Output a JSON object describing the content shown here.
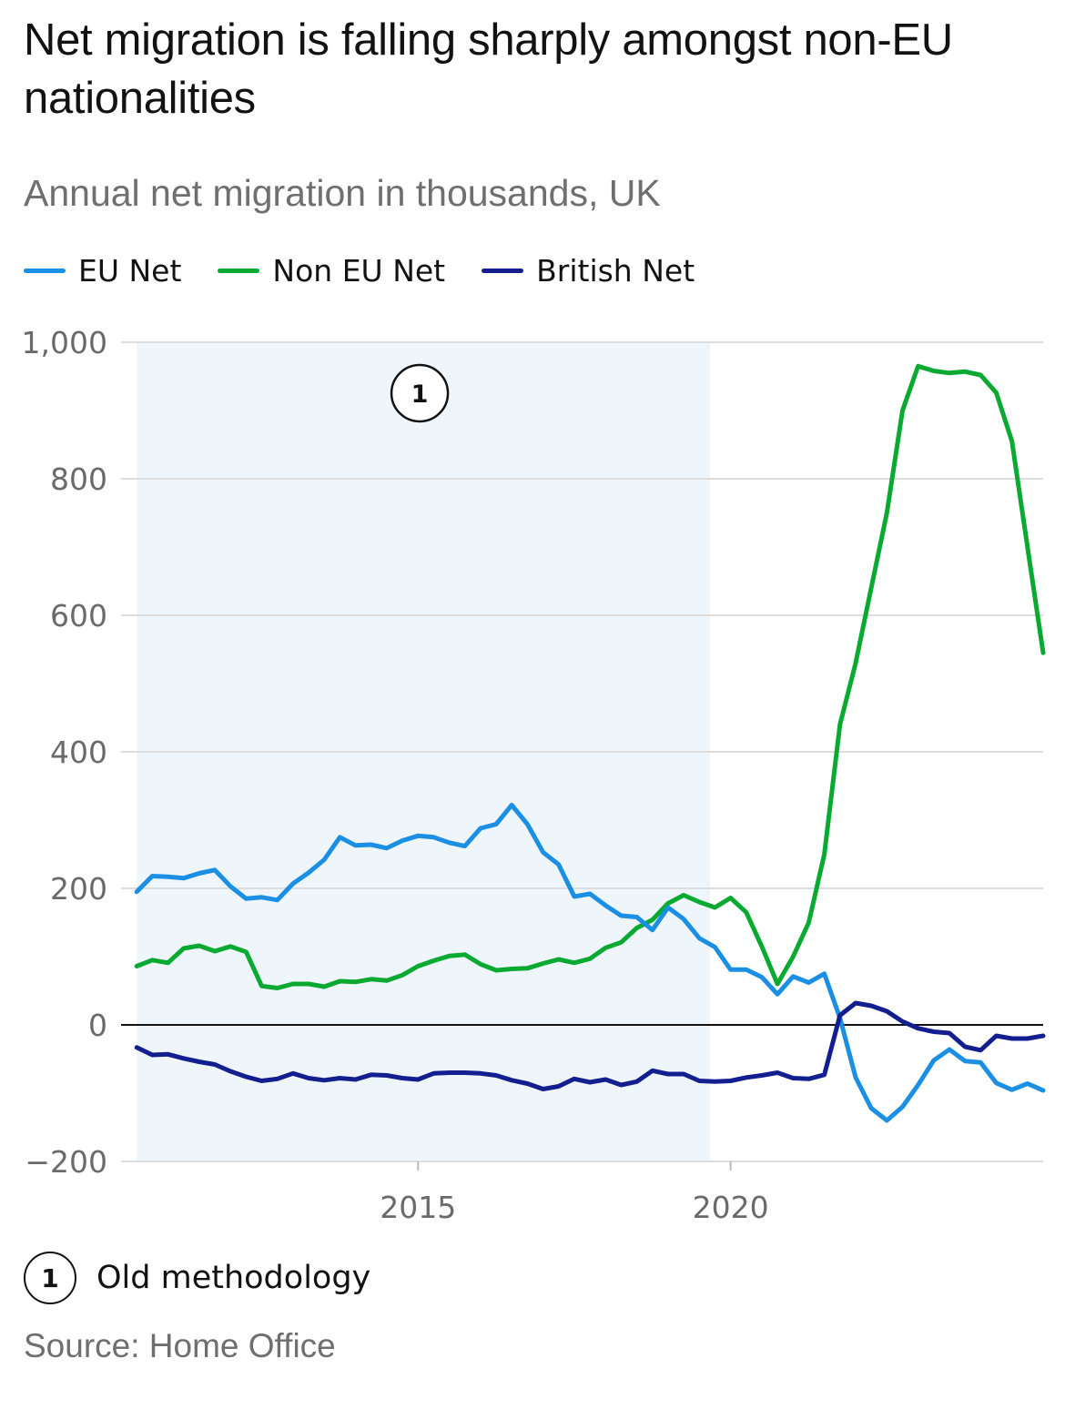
{
  "header": {
    "title": "Net migration is falling sharply amongst non-EU nationalities",
    "subtitle": "Annual net migration in thousands, UK"
  },
  "footnote": {
    "marker": "1",
    "text": "Old methodology"
  },
  "source": "Source: Home Office",
  "colors": {
    "eu": "#1a8fe3",
    "non_eu": "#0aaa32",
    "british": "#141f8f",
    "shade": "#eef6fc",
    "grid": "#dddddd",
    "zero": "#121212"
  },
  "chart_data": {
    "type": "line",
    "title": "Net migration is falling sharply amongst non-EU nationalities",
    "subtitle": "Annual net migration in thousands, UK",
    "xlabel": "",
    "ylabel": "",
    "xlim": [
      2010.25,
      2025.0
    ],
    "ylim": [
      -200,
      1000
    ],
    "y_ticks": [
      -200,
      0,
      200,
      400,
      600,
      800,
      1000
    ],
    "y_tick_labels": [
      "−200",
      "0",
      "200",
      "400",
      "600",
      "800",
      "1,000"
    ],
    "x_ticks": [
      2015,
      2020
    ],
    "x_tick_labels": [
      "2015",
      "2020"
    ],
    "grid": true,
    "legend": "top-left",
    "annotation": {
      "label": "1",
      "shaded_range": [
        2010.5,
        2019.67
      ],
      "text": "Old methodology"
    },
    "series": [
      {
        "name": "EU Net",
        "color": "#1a8fe3",
        "x": [
          2010.5,
          2010.75,
          2011,
          2011.25,
          2011.5,
          2011.75,
          2012,
          2012.25,
          2012.5,
          2012.75,
          2013,
          2013.25,
          2013.5,
          2013.75,
          2014,
          2014.25,
          2014.5,
          2014.75,
          2015,
          2015.25,
          2015.5,
          2015.75,
          2016,
          2016.25,
          2016.5,
          2016.75,
          2017,
          2017.25,
          2017.5,
          2017.75,
          2018,
          2018.25,
          2018.5,
          2018.75,
          2019,
          2019.25,
          2019.5,
          2019.75,
          2020,
          2020.25,
          2020.5,
          2020.75,
          2021,
          2021.25,
          2021.5,
          2021.75,
          2022,
          2022.25,
          2022.5,
          2022.75,
          2023,
          2023.25,
          2023.5,
          2023.75,
          2024,
          2024.25,
          2024.5,
          2024.75,
          2025
        ],
        "values": [
          195,
          218,
          217,
          215,
          222,
          227,
          203,
          185,
          187,
          183,
          207,
          223,
          242,
          275,
          263,
          264,
          259,
          270,
          277,
          275,
          267,
          262,
          288,
          294,
          322,
          294,
          253,
          235,
          188,
          192,
          175,
          160,
          158,
          139,
          172,
          155,
          127,
          114,
          81,
          81,
          70,
          45,
          71,
          62,
          75,
          10,
          -77,
          -122,
          -140,
          -120,
          -88,
          -52,
          -36,
          -53,
          -55,
          -85,
          -95,
          -86,
          -96
        ]
      },
      {
        "name": "Non EU Net",
        "color": "#0aaa32",
        "x": [
          2010.5,
          2010.75,
          2011,
          2011.25,
          2011.5,
          2011.75,
          2012,
          2012.25,
          2012.5,
          2012.75,
          2013,
          2013.25,
          2013.5,
          2013.75,
          2014,
          2014.25,
          2014.5,
          2014.75,
          2015,
          2015.25,
          2015.5,
          2015.75,
          2016,
          2016.25,
          2016.5,
          2016.75,
          2017,
          2017.25,
          2017.5,
          2017.75,
          2018,
          2018.25,
          2018.5,
          2018.75,
          2019,
          2019.25,
          2019.5,
          2019.75,
          2020,
          2020.25,
          2020.5,
          2020.75,
          2021,
          2021.25,
          2021.5,
          2021.75,
          2022,
          2022.25,
          2022.5,
          2022.75,
          2023,
          2023.25,
          2023.5,
          2023.75,
          2024,
          2024.25,
          2024.5,
          2024.75,
          2025
        ],
        "values": [
          86,
          95,
          91,
          112,
          116,
          108,
          115,
          107,
          57,
          54,
          60,
          60,
          56,
          64,
          63,
          67,
          65,
          73,
          86,
          94,
          101,
          103,
          89,
          80,
          82,
          83,
          90,
          96,
          91,
          97,
          113,
          121,
          142,
          154,
          178,
          190,
          180,
          172,
          186,
          165,
          115,
          60,
          100,
          150,
          250,
          440,
          530,
          640,
          750,
          900,
          965,
          958,
          955,
          957,
          952,
          926,
          855,
          700,
          545
        ]
      },
      {
        "name": "British Net",
        "color": "#141f8f",
        "x": [
          2010.5,
          2010.75,
          2011,
          2011.25,
          2011.5,
          2011.75,
          2012,
          2012.25,
          2012.5,
          2012.75,
          2013,
          2013.25,
          2013.5,
          2013.75,
          2014,
          2014.25,
          2014.5,
          2014.75,
          2015,
          2015.25,
          2015.5,
          2015.75,
          2016,
          2016.25,
          2016.5,
          2016.75,
          2017,
          2017.25,
          2017.5,
          2017.75,
          2018,
          2018.25,
          2018.5,
          2018.75,
          2019,
          2019.25,
          2019.5,
          2019.75,
          2020,
          2020.25,
          2020.5,
          2020.75,
          2021,
          2021.25,
          2021.5,
          2021.75,
          2022,
          2022.25,
          2022.5,
          2022.75,
          2023,
          2023.25,
          2023.5,
          2023.75,
          2024,
          2024.25,
          2024.5,
          2024.75,
          2025
        ],
        "values": [
          -33,
          -44,
          -43,
          -49,
          -54,
          -58,
          -68,
          -76,
          -82,
          -79,
          -71,
          -78,
          -81,
          -78,
          -80,
          -73,
          -74,
          -78,
          -80,
          -71,
          -70,
          -70,
          -71,
          -74,
          -81,
          -86,
          -94,
          -90,
          -79,
          -84,
          -80,
          -88,
          -83,
          -67,
          -72,
          -72,
          -82,
          -83,
          -82,
          -77,
          -74,
          -70,
          -78,
          -79,
          -73,
          14,
          32,
          28,
          20,
          5,
          -5,
          -10,
          -12,
          -32,
          -37,
          -16,
          -20,
          -20,
          -16
        ]
      }
    ]
  }
}
